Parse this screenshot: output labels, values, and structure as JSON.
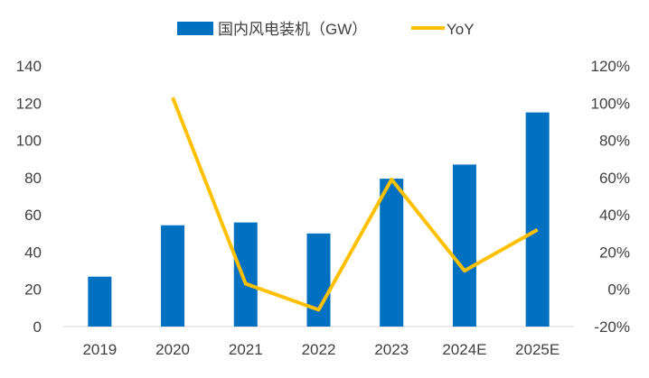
{
  "chart_data": {
    "type": "bar+line",
    "categories": [
      "2019",
      "2020",
      "2021",
      "2022",
      "2023",
      "2024E",
      "2025E"
    ],
    "series": [
      {
        "name": "国内风电装机（GW）",
        "type": "bar",
        "axis": "left",
        "color": "#0070C0",
        "values": [
          26.8,
          54.4,
          55.9,
          50.0,
          79.4,
          87.0,
          115.0
        ]
      },
      {
        "name": "YoY",
        "type": "line",
        "axis": "right",
        "color": "#FFC000",
        "values": [
          null,
          1.03,
          0.03,
          -0.11,
          0.59,
          0.1,
          0.32
        ]
      }
    ],
    "left_axis": {
      "min": 0,
      "max": 140,
      "ticks": [
        "0",
        "20",
        "40",
        "60",
        "80",
        "100",
        "120",
        "140"
      ]
    },
    "right_axis": {
      "min": -0.2,
      "max": 1.2,
      "ticks": [
        "-20%",
        "0%",
        "20%",
        "40%",
        "60%",
        "80%",
        "100%",
        "120%"
      ]
    },
    "legend_position": "top",
    "grid": false
  }
}
